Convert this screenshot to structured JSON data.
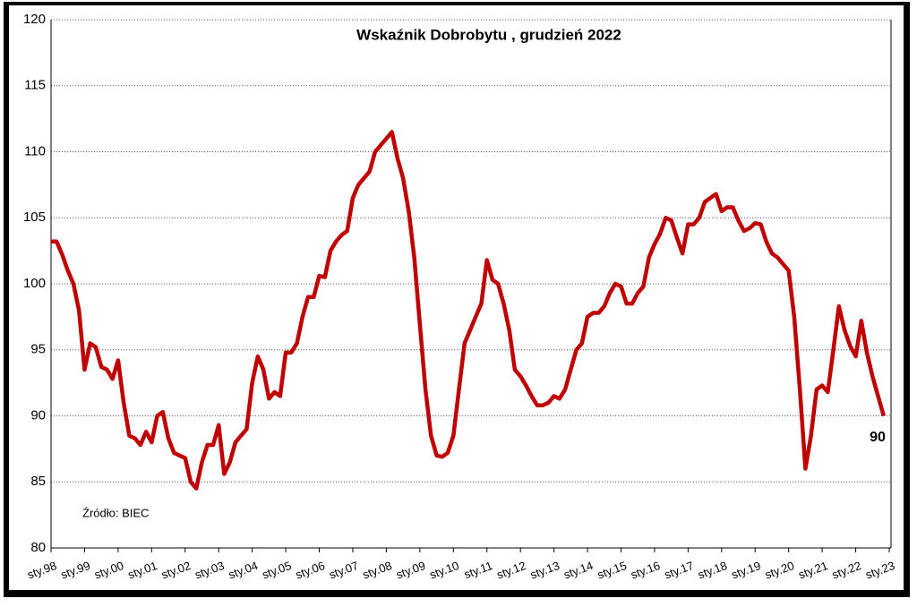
{
  "chart_data": {
    "type": "line",
    "title": "Wskaźnik Dobrobytu , grudzień 2022",
    "source": "Źródło: BIEC",
    "annotation": "90",
    "categories": [
      "sty.98",
      null,
      null,
      null,
      null,
      null,
      "sty.99",
      null,
      null,
      null,
      null,
      null,
      "sty.00",
      null,
      null,
      null,
      null,
      null,
      "sty.01",
      null,
      null,
      null,
      null,
      null,
      "sty.02",
      null,
      null,
      null,
      null,
      null,
      "sty.03",
      null,
      null,
      null,
      null,
      null,
      "sty.04",
      null,
      null,
      null,
      null,
      null,
      "sty.05",
      null,
      null,
      null,
      null,
      null,
      "sty.06",
      null,
      null,
      null,
      null,
      null,
      "sty.07",
      null,
      null,
      null,
      null,
      null,
      "sty.08",
      null,
      null,
      null,
      null,
      null,
      "sty.09",
      null,
      null,
      null,
      null,
      null,
      "sty.10",
      null,
      null,
      null,
      null,
      null,
      "sty.11",
      null,
      null,
      null,
      null,
      null,
      "sty.12",
      null,
      null,
      null,
      null,
      null,
      "sty.13",
      null,
      null,
      null,
      null,
      null,
      "sty.14",
      null,
      null,
      null,
      null,
      null,
      "sty.15",
      null,
      null,
      null,
      null,
      null,
      "sty.16",
      null,
      null,
      null,
      null,
      null,
      "sty.17",
      null,
      null,
      null,
      null,
      null,
      "sty.18",
      null,
      null,
      null,
      null,
      null,
      "sty.19",
      null,
      null,
      null,
      null,
      null,
      "sty.20",
      null,
      null,
      null,
      null,
      null,
      "sty.21",
      null,
      null,
      null,
      null,
      null,
      "sty.22",
      null,
      null,
      null,
      null,
      null,
      "sty.23"
    ],
    "series": [
      {
        "name": "Wskaźnik Dobrobytu",
        "color": "#c00000",
        "values": [
          103.2,
          103.2,
          102.2,
          101,
          100,
          98,
          93.5,
          95.5,
          95.2,
          93.7,
          93.5,
          92.8,
          94.2,
          91,
          88.5,
          88.3,
          87.8,
          88.8,
          88,
          90,
          90.3,
          88.3,
          87.2,
          87,
          86.8,
          85,
          84.5,
          86.5,
          87.8,
          87.8,
          89.3,
          85.6,
          86.5,
          88,
          88.5,
          89,
          92.5,
          94.5,
          93.5,
          91.3,
          91.8,
          91.5,
          94.8,
          94.8,
          95.5,
          97.5,
          99,
          99,
          100.6,
          100.5,
          102.5,
          103.2,
          103.7,
          104,
          106.5,
          107.5,
          108,
          108.5,
          110,
          110.5,
          111,
          111.5,
          109.5,
          108,
          105.5,
          102,
          97,
          92,
          88.5,
          87,
          86.9,
          87.2,
          88.5,
          92,
          95.5,
          96.5,
          97.5,
          98.5,
          101.8,
          100.3,
          100,
          98.5,
          96.5,
          93.5,
          93,
          92.3,
          91.5,
          90.8,
          90.8,
          91,
          91.5,
          91.3,
          92,
          93.5,
          95,
          95.5,
          97.5,
          97.8,
          97.8,
          98.3,
          99.3,
          100,
          99.8,
          98.5,
          98.5,
          99.3,
          99.8,
          102,
          103,
          103.8,
          105,
          104.8,
          103.5,
          102.3,
          104.5,
          104.5,
          105,
          106.2,
          106.5,
          106.8,
          105.5,
          105.8,
          105.8,
          104.8,
          104,
          104.2,
          104.6,
          104.5,
          103.2,
          102.3,
          102,
          101.5,
          101,
          97.5,
          92,
          86,
          88.5,
          92,
          92.3,
          91.8,
          95,
          98.3,
          96.5,
          95.3,
          94.5,
          97.2,
          94.8,
          93,
          91.5,
          90,
          null
        ]
      }
    ],
    "ylim": [
      80,
      120
    ],
    "yticks": [
      80,
      85,
      90,
      95,
      100,
      105,
      110,
      115,
      120
    ],
    "grid": true
  }
}
